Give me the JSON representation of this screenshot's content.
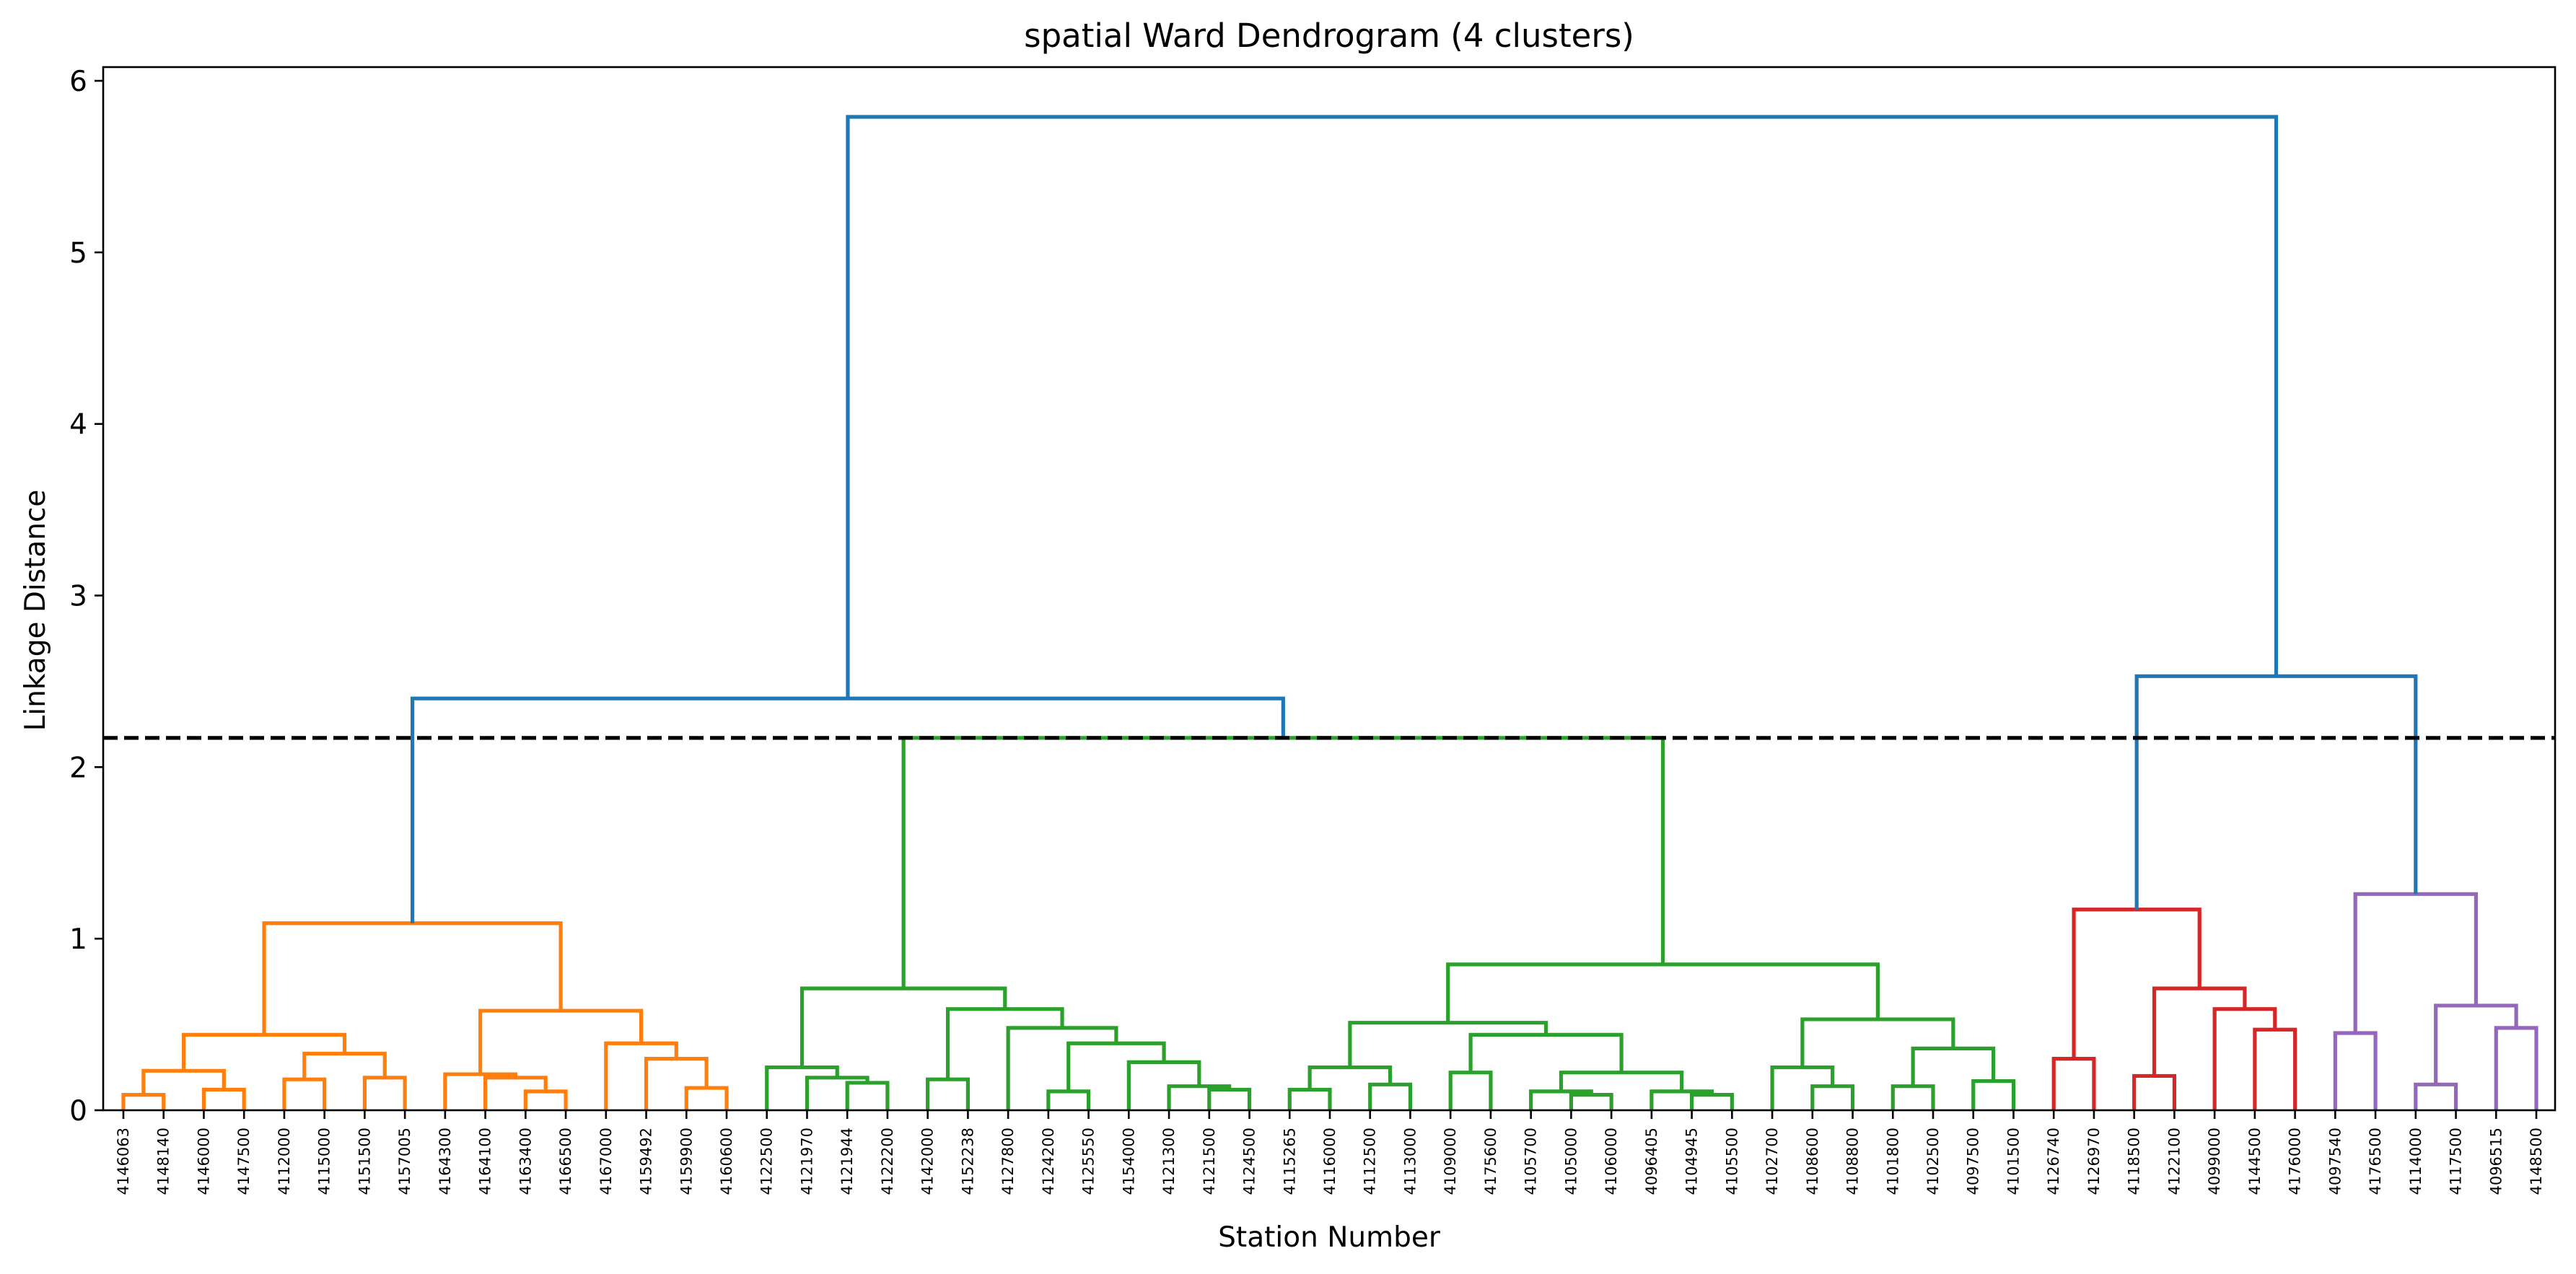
{
  "chart_data": {
    "type": "dendrogram",
    "title": "spatial Ward Dendrogram (4 clusters)",
    "xlabel": "Station Number",
    "ylabel": "Linkage Distance",
    "ylim": [
      0,
      6.08
    ],
    "yticks": [
      0,
      1,
      2,
      3,
      4,
      5,
      6
    ],
    "cut_line": 2.17,
    "grid": false,
    "colors": {
      "above_cut": "#1f77b4",
      "cluster_1": "#ff7f0e",
      "cluster_2": "#2ca02c",
      "cluster_3": "#d62728",
      "cluster_4": "#9467bd",
      "cut_line": "#000000"
    },
    "leaves": [
      "4146063",
      "4148140",
      "4146000",
      "4147500",
      "4112000",
      "4115000",
      "4151500",
      "4157005",
      "4164300",
      "4164100",
      "4163400",
      "4166500",
      "4167000",
      "4159492",
      "4159900",
      "4160600",
      "4122500",
      "4121970",
      "4121944",
      "4122200",
      "4142000",
      "4152238",
      "4127800",
      "4124200",
      "4125550",
      "4154000",
      "4121300",
      "4121500",
      "4124500",
      "4115265",
      "4116000",
      "4112500",
      "4113000",
      "4109000",
      "4175600",
      "4105700",
      "4105000",
      "4106000",
      "4096405",
      "4104945",
      "4105500",
      "4102700",
      "4108600",
      "4108800",
      "4101800",
      "4102500",
      "4097500",
      "4101500",
      "4126740",
      "4126970",
      "4118500",
      "4122100",
      "4099000",
      "4144500",
      "4176000",
      "4097540",
      "4176500",
      "4114000",
      "4117500",
      "4096515",
      "4148500"
    ],
    "merges": [
      {
        "a": 0,
        "b": 1,
        "height": 0.09,
        "cluster": "cluster_1"
      },
      {
        "a": 2,
        "b": 3,
        "height": 0.12,
        "cluster": "cluster_1"
      },
      {
        "a": "m0",
        "b": "m1",
        "height": 0.23,
        "cluster": "cluster_1"
      },
      {
        "a": 4,
        "b": 5,
        "height": 0.18,
        "cluster": "cluster_1"
      },
      {
        "a": 6,
        "b": 7,
        "height": 0.19,
        "cluster": "cluster_1"
      },
      {
        "a": "m3",
        "b": "m4",
        "height": 0.33,
        "cluster": "cluster_1"
      },
      {
        "a": "m2",
        "b": "m5",
        "height": 0.44,
        "cluster": "cluster_1"
      },
      {
        "a": 10,
        "b": 11,
        "height": 0.11,
        "cluster": "cluster_1"
      },
      {
        "a": 9,
        "b": "m7",
        "height": 0.19,
        "cluster": "cluster_1"
      },
      {
        "a": 8,
        "b": "m8",
        "height": 0.21,
        "cluster": "cluster_1"
      },
      {
        "a": 14,
        "b": 15,
        "height": 0.13,
        "cluster": "cluster_1"
      },
      {
        "a": 13,
        "b": "m10",
        "height": 0.3,
        "cluster": "cluster_1"
      },
      {
        "a": 12,
        "b": "m11",
        "height": 0.39,
        "cluster": "cluster_1"
      },
      {
        "a": "m9",
        "b": "m12",
        "height": 0.58,
        "cluster": "cluster_1"
      },
      {
        "a": "m6",
        "b": "m13",
        "height": 1.09,
        "cluster": "cluster_1"
      },
      {
        "a": 18,
        "b": 19,
        "height": 0.16,
        "cluster": "cluster_2"
      },
      {
        "a": 17,
        "b": "m15",
        "height": 0.19,
        "cluster": "cluster_2"
      },
      {
        "a": 16,
        "b": "m16",
        "height": 0.25,
        "cluster": "cluster_2"
      },
      {
        "a": 20,
        "b": 21,
        "height": 0.18,
        "cluster": "cluster_2"
      },
      {
        "a": 23,
        "b": 24,
        "height": 0.11,
        "cluster": "cluster_2"
      },
      {
        "a": 27,
        "b": 28,
        "height": 0.12,
        "cluster": "cluster_2"
      },
      {
        "a": 26,
        "b": "m20",
        "height": 0.14,
        "cluster": "cluster_2"
      },
      {
        "a": 25,
        "b": "m21",
        "height": 0.28,
        "cluster": "cluster_2"
      },
      {
        "a": "m19",
        "b": "m22",
        "height": 0.39,
        "cluster": "cluster_2"
      },
      {
        "a": 22,
        "b": "m23",
        "height": 0.48,
        "cluster": "cluster_2"
      },
      {
        "a": "m18",
        "b": "m24",
        "height": 0.59,
        "cluster": "cluster_2"
      },
      {
        "a": "m17",
        "b": "m25",
        "height": 0.71,
        "cluster": "cluster_2"
      },
      {
        "a": 29,
        "b": 30,
        "height": 0.12,
        "cluster": "cluster_2"
      },
      {
        "a": 31,
        "b": 32,
        "height": 0.15,
        "cluster": "cluster_2"
      },
      {
        "a": "m27",
        "b": "m28",
        "height": 0.25,
        "cluster": "cluster_2"
      },
      {
        "a": 33,
        "b": 34,
        "height": 0.22,
        "cluster": "cluster_2"
      },
      {
        "a": 36,
        "b": 37,
        "height": 0.09,
        "cluster": "cluster_2"
      },
      {
        "a": 35,
        "b": "m31",
        "height": 0.11,
        "cluster": "cluster_2"
      },
      {
        "a": 39,
        "b": 40,
        "height": 0.09,
        "cluster": "cluster_2"
      },
      {
        "a": 38,
        "b": "m33",
        "height": 0.11,
        "cluster": "cluster_2"
      },
      {
        "a": "m32",
        "b": "m34",
        "height": 0.22,
        "cluster": "cluster_2"
      },
      {
        "a": "m30",
        "b": "m35",
        "height": 0.44,
        "cluster": "cluster_2"
      },
      {
        "a": "m29",
        "b": "m36",
        "height": 0.51,
        "cluster": "cluster_2"
      },
      {
        "a": 42,
        "b": 43,
        "height": 0.14,
        "cluster": "cluster_2"
      },
      {
        "a": 41,
        "b": "m38",
        "height": 0.25,
        "cluster": "cluster_2"
      },
      {
        "a": 44,
        "b": 45,
        "height": 0.14,
        "cluster": "cluster_2"
      },
      {
        "a": 46,
        "b": 47,
        "height": 0.17,
        "cluster": "cluster_2"
      },
      {
        "a": "m40",
        "b": "m41",
        "height": 0.36,
        "cluster": "cluster_2"
      },
      {
        "a": "m39",
        "b": "m42",
        "height": 0.53,
        "cluster": "cluster_2"
      },
      {
        "a": "m37",
        "b": "m43",
        "height": 0.85,
        "cluster": "cluster_2"
      },
      {
        "a": "m26",
        "b": "m44",
        "height": 2.17,
        "cluster": "cluster_2"
      },
      {
        "a": 48,
        "b": 49,
        "height": 0.3,
        "cluster": "cluster_3"
      },
      {
        "a": 50,
        "b": 51,
        "height": 0.2,
        "cluster": "cluster_3"
      },
      {
        "a": 53,
        "b": 54,
        "height": 0.47,
        "cluster": "cluster_3"
      },
      {
        "a": 52,
        "b": "m48",
        "height": 0.59,
        "cluster": "cluster_3"
      },
      {
        "a": "m47",
        "b": "m49",
        "height": 0.71,
        "cluster": "cluster_3"
      },
      {
        "a": "m46",
        "b": "m50",
        "height": 1.17,
        "cluster": "cluster_3"
      },
      {
        "a": 55,
        "b": 56,
        "height": 0.45,
        "cluster": "cluster_4"
      },
      {
        "a": 57,
        "b": 58,
        "height": 0.15,
        "cluster": "cluster_4"
      },
      {
        "a": 59,
        "b": 60,
        "height": 0.48,
        "cluster": "cluster_4"
      },
      {
        "a": "m53",
        "b": "m54",
        "height": 0.61,
        "cluster": "cluster_4"
      },
      {
        "a": "m52",
        "b": "m55",
        "height": 1.26,
        "cluster": "cluster_4"
      },
      {
        "a": "m14",
        "b": "m45",
        "height": 2.4,
        "cluster": "above_cut"
      },
      {
        "a": "m51",
        "b": "m56",
        "height": 2.53,
        "cluster": "above_cut"
      },
      {
        "a": "m57",
        "b": "m58",
        "height": 5.79,
        "cluster": "above_cut"
      }
    ]
  }
}
